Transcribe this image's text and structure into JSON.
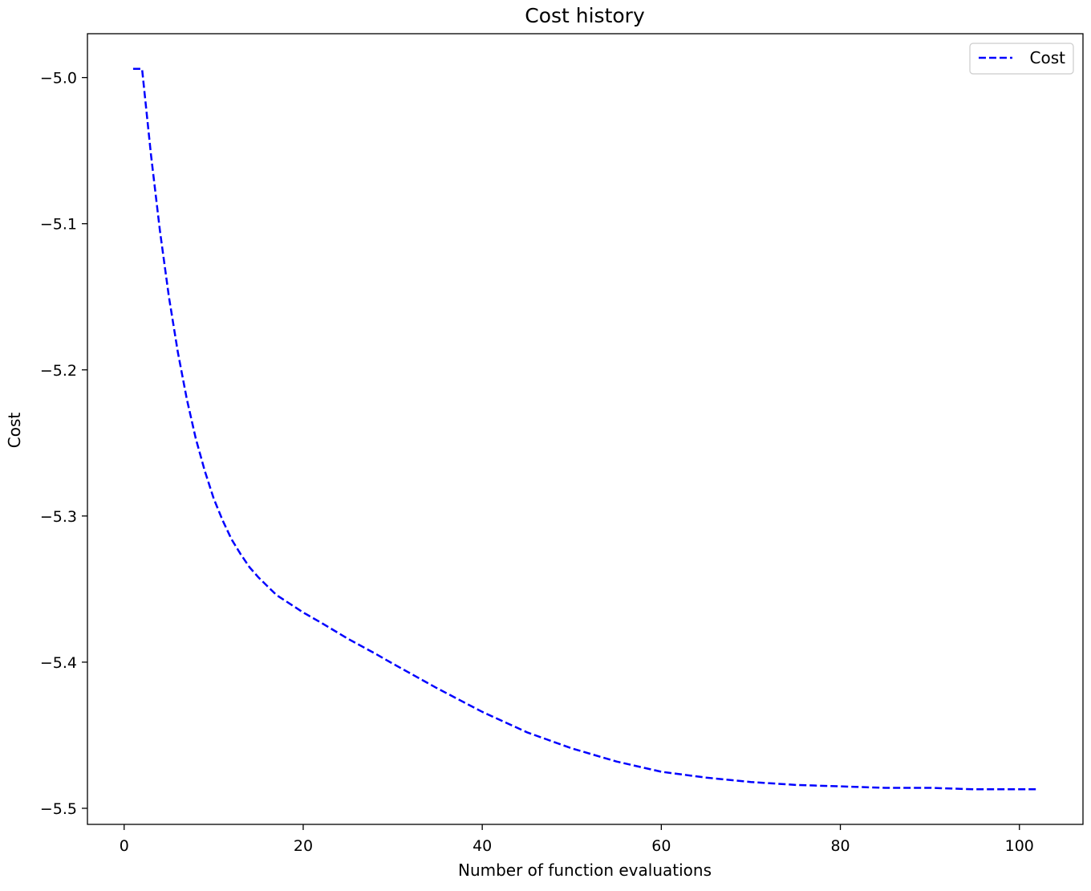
{
  "chart_data": {
    "type": "line",
    "title": "Cost history",
    "xlabel": "Number of function evaluations",
    "ylabel": "Cost",
    "xlim": [
      -4.1,
      107.1
    ],
    "ylim": [
      -5.511,
      -4.97
    ],
    "x_ticks": [
      0,
      20,
      40,
      60,
      80,
      100
    ],
    "y_ticks": [
      -5.0,
      -5.1,
      -5.2,
      -5.3,
      -5.4,
      -5.5
    ],
    "y_tick_labels": [
      "−5.0",
      "−5.1",
      "−5.2",
      "−5.3",
      "−5.4",
      "−5.5"
    ],
    "grid": false,
    "legend": "top-right",
    "series": [
      {
        "name": "Cost",
        "color": "#0000ff",
        "line_style": "dashed",
        "x": [
          1,
          2,
          3,
          4,
          5,
          6,
          7,
          8,
          9,
          10,
          11,
          12,
          13,
          14,
          15,
          16,
          17,
          18,
          20,
          22,
          25,
          28,
          30,
          35,
          40,
          45,
          50,
          55,
          60,
          65,
          70,
          75,
          80,
          85,
          90,
          95,
          100,
          102
        ],
        "values": [
          -4.994,
          -4.994,
          -5.053,
          -5.105,
          -5.15,
          -5.188,
          -5.22,
          -5.247,
          -5.269,
          -5.288,
          -5.303,
          -5.316,
          -5.326,
          -5.335,
          -5.342,
          -5.348,
          -5.354,
          -5.358,
          -5.366,
          -5.373,
          -5.384,
          -5.394,
          -5.401,
          -5.418,
          -5.434,
          -5.448,
          -5.459,
          -5.468,
          -5.475,
          -5.479,
          -5.482,
          -5.484,
          -5.485,
          -5.486,
          -5.486,
          -5.487,
          -5.487,
          -5.487
        ]
      }
    ]
  }
}
